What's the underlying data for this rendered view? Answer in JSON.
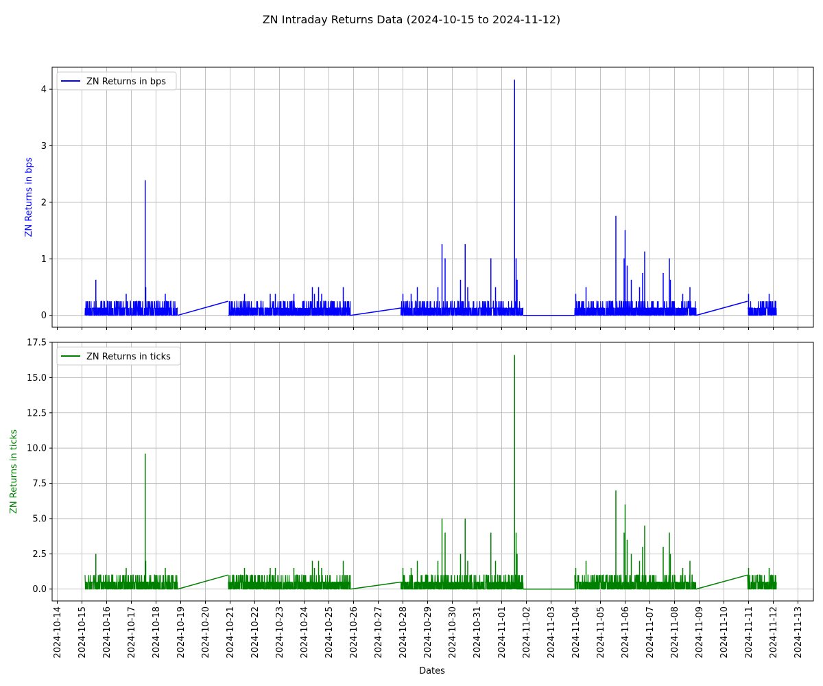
{
  "title": "ZN Intraday Returns Data (2024-10-15 to 2024-11-12)",
  "xlabel": "Dates",
  "chart_data": [
    {
      "type": "line",
      "ylabel": "ZN Returns in bps",
      "legend": "ZN Returns in bps",
      "legend_position": "top-left",
      "color": "#0000ff",
      "ylim": [
        -0.21,
        4.39
      ],
      "yticks": [
        0,
        1,
        2,
        3,
        4
      ],
      "yticklabels": [
        "0",
        "1",
        "2",
        "3",
        "4"
      ],
      "xlim": [
        "2024-10-13T19:00",
        "2024-11-13T15:00"
      ],
      "xticks": [
        "2024-10-14",
        "2024-10-15",
        "2024-10-16",
        "2024-10-17",
        "2024-10-18",
        "2024-10-19",
        "2024-10-20",
        "2024-10-21",
        "2024-10-22",
        "2024-10-23",
        "2024-10-24",
        "2024-10-25",
        "2024-10-26",
        "2024-10-27",
        "2024-10-28",
        "2024-10-29",
        "2024-10-30",
        "2024-10-31",
        "2024-11-01",
        "2024-11-02",
        "2024-11-03",
        "2024-11-04",
        "2024-11-05",
        "2024-11-06",
        "2024-11-07",
        "2024-11-08",
        "2024-11-09",
        "2024-11-10",
        "2024-11-11",
        "2024-11-12",
        "2024-11-13"
      ],
      "grid": true,
      "sessions": [
        {
          "start": "2024-10-15T03:00",
          "end": "2024-10-18T21:00",
          "base": 0.13,
          "max": 0.25
        },
        {
          "start": "2024-10-20T22:00",
          "end": "2024-10-25T21:00",
          "base": 0.13,
          "max": 0.25
        },
        {
          "start": "2024-10-27T22:00",
          "end": "2024-11-01T21:00",
          "base": 0.13,
          "max": 0.25
        },
        {
          "start": "2024-11-03T23:00",
          "end": "2024-11-08T21:00",
          "base": 0.13,
          "max": 0.25
        },
        {
          "start": "2024-11-10T23:00",
          "end": "2024-11-12T03:00",
          "base": 0.13,
          "max": 0.25
        }
      ],
      "gap_lines": [
        {
          "from": [
            "2024-10-18T21:00",
            0
          ],
          "to": [
            "2024-10-20T22:00",
            0.25
          ]
        },
        {
          "from": [
            "2024-10-25T21:00",
            0
          ],
          "to": [
            "2024-10-27T22:00",
            0.13
          ]
        },
        {
          "from": [
            "2024-11-01T21:00",
            0
          ],
          "to": [
            "2024-11-03T23:00",
            0
          ]
        },
        {
          "from": [
            "2024-11-08T21:00",
            0
          ],
          "to": [
            "2024-11-10T23:00",
            0.25
          ]
        }
      ],
      "spikes": [
        {
          "x": "2024-10-15T13:30",
          "y": 0.63
        },
        {
          "x": "2024-10-16T19:00",
          "y": 0.38
        },
        {
          "x": "2024-10-17T13:30",
          "y": 2.39
        },
        {
          "x": "2024-10-17T14:00",
          "y": 0.5
        },
        {
          "x": "2024-10-18T09:00",
          "y": 0.38
        },
        {
          "x": "2024-10-21T14:00",
          "y": 0.38
        },
        {
          "x": "2024-10-22T15:00",
          "y": 0.38
        },
        {
          "x": "2024-10-22T20:00",
          "y": 0.38
        },
        {
          "x": "2024-10-23T14:00",
          "y": 0.38
        },
        {
          "x": "2024-10-24T08:00",
          "y": 0.5
        },
        {
          "x": "2024-10-24T10:00",
          "y": 0.38
        },
        {
          "x": "2024-10-24T14:00",
          "y": 0.5
        },
        {
          "x": "2024-10-24T17:00",
          "y": 0.38
        },
        {
          "x": "2024-10-25T14:00",
          "y": 0.5
        },
        {
          "x": "2024-10-28T00:00",
          "y": 0.38
        },
        {
          "x": "2024-10-28T08:00",
          "y": 0.38
        },
        {
          "x": "2024-10-28T14:00",
          "y": 0.5
        },
        {
          "x": "2024-10-29T10:00",
          "y": 0.5
        },
        {
          "x": "2024-10-29T14:00",
          "y": 1.26
        },
        {
          "x": "2024-10-29T17:00",
          "y": 1.01
        },
        {
          "x": "2024-10-30T08:00",
          "y": 0.63
        },
        {
          "x": "2024-10-30T12:30",
          "y": 1.26
        },
        {
          "x": "2024-10-30T15:00",
          "y": 0.5
        },
        {
          "x": "2024-10-31T13:30",
          "y": 1.01
        },
        {
          "x": "2024-10-31T18:00",
          "y": 0.5
        },
        {
          "x": "2024-11-01T12:30",
          "y": 4.17
        },
        {
          "x": "2024-11-01T14:00",
          "y": 1.01
        },
        {
          "x": "2024-11-01T15:00",
          "y": 0.63
        },
        {
          "x": "2024-11-04T00:00",
          "y": 0.38
        },
        {
          "x": "2024-11-04T10:00",
          "y": 0.5
        },
        {
          "x": "2024-11-05T15:00",
          "y": 1.76
        },
        {
          "x": "2024-11-05T23:00",
          "y": 1.01
        },
        {
          "x": "2024-11-06T00:00",
          "y": 1.51
        },
        {
          "x": "2024-11-06T02:00",
          "y": 0.88
        },
        {
          "x": "2024-11-06T06:00",
          "y": 0.63
        },
        {
          "x": "2024-11-06T14:00",
          "y": 0.5
        },
        {
          "x": "2024-11-06T17:00",
          "y": 0.75
        },
        {
          "x": "2024-11-06T19:00",
          "y": 1.13
        },
        {
          "x": "2024-11-07T13:00",
          "y": 0.75
        },
        {
          "x": "2024-11-07T19:00",
          "y": 1.01
        },
        {
          "x": "2024-11-07T20:00",
          "y": 0.63
        },
        {
          "x": "2024-11-08T08:00",
          "y": 0.38
        },
        {
          "x": "2024-11-08T15:00",
          "y": 0.5
        },
        {
          "x": "2024-11-11T00:00",
          "y": 0.38
        },
        {
          "x": "2024-11-11T20:00",
          "y": 0.38
        }
      ]
    },
    {
      "type": "line",
      "ylabel": "ZN Returns in ticks",
      "legend": "ZN Returns in ticks",
      "legend_position": "top-left",
      "color": "#008000",
      "ylim": [
        -0.84,
        17.5
      ],
      "yticks": [
        0,
        2.5,
        5,
        7.5,
        10,
        12.5,
        15,
        17.5
      ],
      "yticklabels": [
        "0.0",
        "2.5",
        "5.0",
        "7.5",
        "10.0",
        "12.5",
        "15.0",
        "17.5"
      ],
      "xlim": [
        "2024-10-13T19:00",
        "2024-11-13T15:00"
      ],
      "xticks": [
        "2024-10-14",
        "2024-10-15",
        "2024-10-16",
        "2024-10-17",
        "2024-10-18",
        "2024-10-19",
        "2024-10-20",
        "2024-10-21",
        "2024-10-22",
        "2024-10-23",
        "2024-10-24",
        "2024-10-25",
        "2024-10-26",
        "2024-10-27",
        "2024-10-28",
        "2024-10-29",
        "2024-10-30",
        "2024-10-31",
        "2024-11-01",
        "2024-11-02",
        "2024-11-03",
        "2024-11-04",
        "2024-11-05",
        "2024-11-06",
        "2024-11-07",
        "2024-11-08",
        "2024-11-09",
        "2024-11-10",
        "2024-11-11",
        "2024-11-12",
        "2024-11-13"
      ],
      "grid": true,
      "sessions": [
        {
          "start": "2024-10-15T03:00",
          "end": "2024-10-18T21:00",
          "base": 0.5,
          "max": 1.0
        },
        {
          "start": "2024-10-20T22:00",
          "end": "2024-10-25T21:00",
          "base": 0.5,
          "max": 1.0
        },
        {
          "start": "2024-10-27T22:00",
          "end": "2024-11-01T21:00",
          "base": 0.5,
          "max": 1.0
        },
        {
          "start": "2024-11-03T23:00",
          "end": "2024-11-08T21:00",
          "base": 0.5,
          "max": 1.0
        },
        {
          "start": "2024-11-10T23:00",
          "end": "2024-11-12T03:00",
          "base": 0.5,
          "max": 1.0
        }
      ],
      "gap_lines": [
        {
          "from": [
            "2024-10-18T21:00",
            0
          ],
          "to": [
            "2024-10-20T22:00",
            1.0
          ]
        },
        {
          "from": [
            "2024-10-25T21:00",
            0
          ],
          "to": [
            "2024-10-27T22:00",
            0.5
          ]
        },
        {
          "from": [
            "2024-11-01T21:00",
            0
          ],
          "to": [
            "2024-11-03T23:00",
            0
          ]
        },
        {
          "from": [
            "2024-11-08T21:00",
            0
          ],
          "to": [
            "2024-11-10T23:00",
            1.0
          ]
        }
      ],
      "spikes": [
        {
          "x": "2024-10-15T13:30",
          "y": 2.5
        },
        {
          "x": "2024-10-16T19:00",
          "y": 1.5
        },
        {
          "x": "2024-10-17T13:30",
          "y": 9.6
        },
        {
          "x": "2024-10-17T14:00",
          "y": 2.0
        },
        {
          "x": "2024-10-18T09:00",
          "y": 1.5
        },
        {
          "x": "2024-10-21T14:00",
          "y": 1.5
        },
        {
          "x": "2024-10-22T15:00",
          "y": 1.5
        },
        {
          "x": "2024-10-22T20:00",
          "y": 1.5
        },
        {
          "x": "2024-10-23T14:00",
          "y": 1.5
        },
        {
          "x": "2024-10-24T08:00",
          "y": 2.0
        },
        {
          "x": "2024-10-24T10:00",
          "y": 1.5
        },
        {
          "x": "2024-10-24T14:00",
          "y": 2.0
        },
        {
          "x": "2024-10-24T17:00",
          "y": 1.5
        },
        {
          "x": "2024-10-25T14:00",
          "y": 2.0
        },
        {
          "x": "2024-10-28T00:00",
          "y": 1.5
        },
        {
          "x": "2024-10-28T08:00",
          "y": 1.5
        },
        {
          "x": "2024-10-28T14:00",
          "y": 2.0
        },
        {
          "x": "2024-10-29T10:00",
          "y": 2.0
        },
        {
          "x": "2024-10-29T14:00",
          "y": 5.0
        },
        {
          "x": "2024-10-29T17:00",
          "y": 4.0
        },
        {
          "x": "2024-10-30T08:00",
          "y": 2.5
        },
        {
          "x": "2024-10-30T12:30",
          "y": 5.0
        },
        {
          "x": "2024-10-30T15:00",
          "y": 2.0
        },
        {
          "x": "2024-10-31T13:30",
          "y": 4.0
        },
        {
          "x": "2024-10-31T18:00",
          "y": 2.0
        },
        {
          "x": "2024-11-01T12:30",
          "y": 16.6
        },
        {
          "x": "2024-11-01T14:00",
          "y": 4.0
        },
        {
          "x": "2024-11-01T15:00",
          "y": 2.5
        },
        {
          "x": "2024-11-04T00:00",
          "y": 1.5
        },
        {
          "x": "2024-11-04T10:00",
          "y": 2.0
        },
        {
          "x": "2024-11-05T15:00",
          "y": 7.0
        },
        {
          "x": "2024-11-05T23:00",
          "y": 4.0
        },
        {
          "x": "2024-11-06T00:00",
          "y": 6.0
        },
        {
          "x": "2024-11-06T02:00",
          "y": 3.5
        },
        {
          "x": "2024-11-06T06:00",
          "y": 2.5
        },
        {
          "x": "2024-11-06T14:00",
          "y": 2.0
        },
        {
          "x": "2024-11-06T17:00",
          "y": 3.0
        },
        {
          "x": "2024-11-06T19:00",
          "y": 4.5
        },
        {
          "x": "2024-11-07T13:00",
          "y": 3.0
        },
        {
          "x": "2024-11-07T19:00",
          "y": 4.0
        },
        {
          "x": "2024-11-07T20:00",
          "y": 2.5
        },
        {
          "x": "2024-11-08T08:00",
          "y": 1.5
        },
        {
          "x": "2024-11-08T15:00",
          "y": 2.0
        },
        {
          "x": "2024-11-11T00:00",
          "y": 1.5
        },
        {
          "x": "2024-11-11T20:00",
          "y": 1.5
        }
      ]
    }
  ]
}
